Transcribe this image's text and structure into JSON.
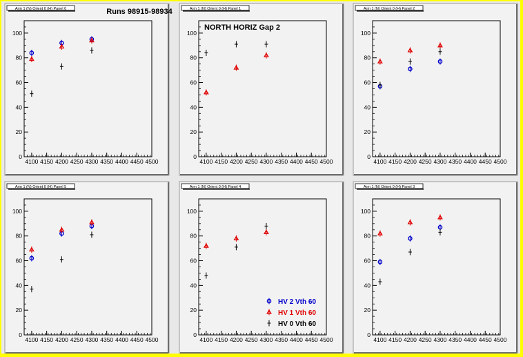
{
  "colors": {
    "hv2": "#0000cc",
    "hv1": "#e00000",
    "hv0": "#000000",
    "frame_bg": "#f2f2f2",
    "page_bg": "#e8e8e8",
    "border": "#ffff00"
  },
  "figure": {
    "runs_label": "Runs 98915-98934",
    "region_label": "NORTH HORIZ Gap 2",
    "legend": [
      {
        "label": "HV 2 Vth 60",
        "marker": "circle",
        "color_key": "hv2"
      },
      {
        "label": "HV 1 Vth 60",
        "marker": "triangle",
        "color_key": "hv1"
      },
      {
        "label": "HV 0 Vth 60",
        "marker": "cross",
        "color_key": "hv0"
      }
    ]
  },
  "chart_data": [
    {
      "type": "scatter",
      "title": "Arm 1 (N) Orient 0 (H) Panel 0",
      "xlim": [
        4075,
        4500
      ],
      "ylim": [
        0,
        110
      ],
      "xticks": [
        4100,
        4150,
        4200,
        4250,
        4300,
        4350,
        4400,
        4450,
        4500
      ],
      "yticks": [
        0,
        20,
        40,
        60,
        80,
        100
      ],
      "x": [
        4100,
        4200,
        4300
      ],
      "series": [
        {
          "name": "HV 2 Vth 60",
          "color_key": "hv2",
          "marker": "circle",
          "values": [
            84,
            92,
            95
          ]
        },
        {
          "name": "HV 1 Vth 60",
          "color_key": "hv1",
          "marker": "triangle",
          "values": [
            79,
            89,
            94
          ]
        },
        {
          "name": "HV 0 Vth 60",
          "color_key": "hv0",
          "marker": "cross",
          "values": [
            51,
            73,
            86
          ]
        }
      ]
    },
    {
      "type": "scatter",
      "title": "Arm 1 (N) Orient 0 (H) Panel 1",
      "xlim": [
        4075,
        4500
      ],
      "ylim": [
        0,
        110
      ],
      "xticks": [
        4100,
        4150,
        4200,
        4250,
        4300,
        4350,
        4400,
        4450,
        4500
      ],
      "yticks": [
        0,
        20,
        40,
        60,
        80,
        100
      ],
      "x": [
        4100,
        4200,
        4300
      ],
      "series": [
        {
          "name": "HV 2 Vth 60",
          "color_key": "hv2",
          "marker": "circle",
          "values": []
        },
        {
          "name": "HV 1 Vth 60",
          "color_key": "hv1",
          "marker": "triangle",
          "values": [
            52,
            72,
            82
          ]
        },
        {
          "name": "HV 0 Vth 60",
          "color_key": "hv0",
          "marker": "cross",
          "values": [
            84,
            91,
            91
          ]
        }
      ]
    },
    {
      "type": "scatter",
      "title": "Arm 1 (N) Orient 0 (H) Panel 2",
      "xlim": [
        4075,
        4500
      ],
      "ylim": [
        0,
        110
      ],
      "xticks": [
        4100,
        4150,
        4200,
        4250,
        4300,
        4350,
        4400,
        4450,
        4500
      ],
      "yticks": [
        0,
        20,
        40,
        60,
        80,
        100
      ],
      "x": [
        4100,
        4200,
        4300
      ],
      "series": [
        {
          "name": "HV 2 Vth 60",
          "color_key": "hv2",
          "marker": "circle",
          "values": [
            57,
            71,
            77
          ]
        },
        {
          "name": "HV 1 Vth 60",
          "color_key": "hv1",
          "marker": "triangle",
          "values": [
            77,
            86,
            90
          ]
        },
        {
          "name": "HV 0 Vth 60",
          "color_key": "hv0",
          "marker": "cross",
          "values": [
            58,
            77,
            85
          ]
        }
      ]
    },
    {
      "type": "scatter",
      "title": "Arm 1 (N) Orient 0 (H) Panel 5",
      "xlim": [
        4075,
        4500
      ],
      "ylim": [
        0,
        110
      ],
      "xticks": [
        4100,
        4150,
        4200,
        4250,
        4300,
        4350,
        4400,
        4450,
        4500
      ],
      "yticks": [
        0,
        20,
        40,
        60,
        80,
        100
      ],
      "x": [
        4100,
        4200,
        4300
      ],
      "series": [
        {
          "name": "HV 2 Vth 60",
          "color_key": "hv2",
          "marker": "circle",
          "values": [
            62,
            82,
            88
          ]
        },
        {
          "name": "HV 1 Vth 60",
          "color_key": "hv1",
          "marker": "triangle",
          "values": [
            69,
            85,
            91
          ]
        },
        {
          "name": "HV 0 Vth 60",
          "color_key": "hv0",
          "marker": "cross",
          "values": [
            37,
            61,
            81
          ]
        }
      ]
    },
    {
      "type": "scatter",
      "title": "Arm 1 (N) Orient 0 (H) Panel 4",
      "xlim": [
        4075,
        4500
      ],
      "ylim": [
        0,
        110
      ],
      "xticks": [
        4100,
        4150,
        4200,
        4250,
        4300,
        4350,
        4400,
        4450,
        4500
      ],
      "yticks": [
        0,
        20,
        40,
        60,
        80,
        100
      ],
      "x": [
        4100,
        4200,
        4300
      ],
      "series": [
        {
          "name": "HV 2 Vth 60",
          "color_key": "hv2",
          "marker": "circle",
          "values": []
        },
        {
          "name": "HV 1 Vth 60",
          "color_key": "hv1",
          "marker": "triangle",
          "values": [
            72,
            78,
            83
          ]
        },
        {
          "name": "HV 0 Vth 60",
          "color_key": "hv0",
          "marker": "cross",
          "values": [
            48,
            71,
            88
          ]
        }
      ]
    },
    {
      "type": "scatter",
      "title": "Arm 1 (N) Orient 0 (H) Panel 3",
      "xlim": [
        4075,
        4500
      ],
      "ylim": [
        0,
        110
      ],
      "xticks": [
        4100,
        4150,
        4200,
        4250,
        4300,
        4350,
        4400,
        4450,
        4500
      ],
      "yticks": [
        0,
        20,
        40,
        60,
        80,
        100
      ],
      "x": [
        4100,
        4200,
        4300
      ],
      "series": [
        {
          "name": "HV 2 Vth 60",
          "color_key": "hv2",
          "marker": "circle",
          "values": [
            59,
            78,
            87
          ]
        },
        {
          "name": "HV 1 Vth 60",
          "color_key": "hv1",
          "marker": "triangle",
          "values": [
            82,
            91,
            95
          ]
        },
        {
          "name": "HV 0 Vth 60",
          "color_key": "hv0",
          "marker": "cross",
          "values": [
            43,
            67,
            83
          ]
        }
      ]
    }
  ]
}
